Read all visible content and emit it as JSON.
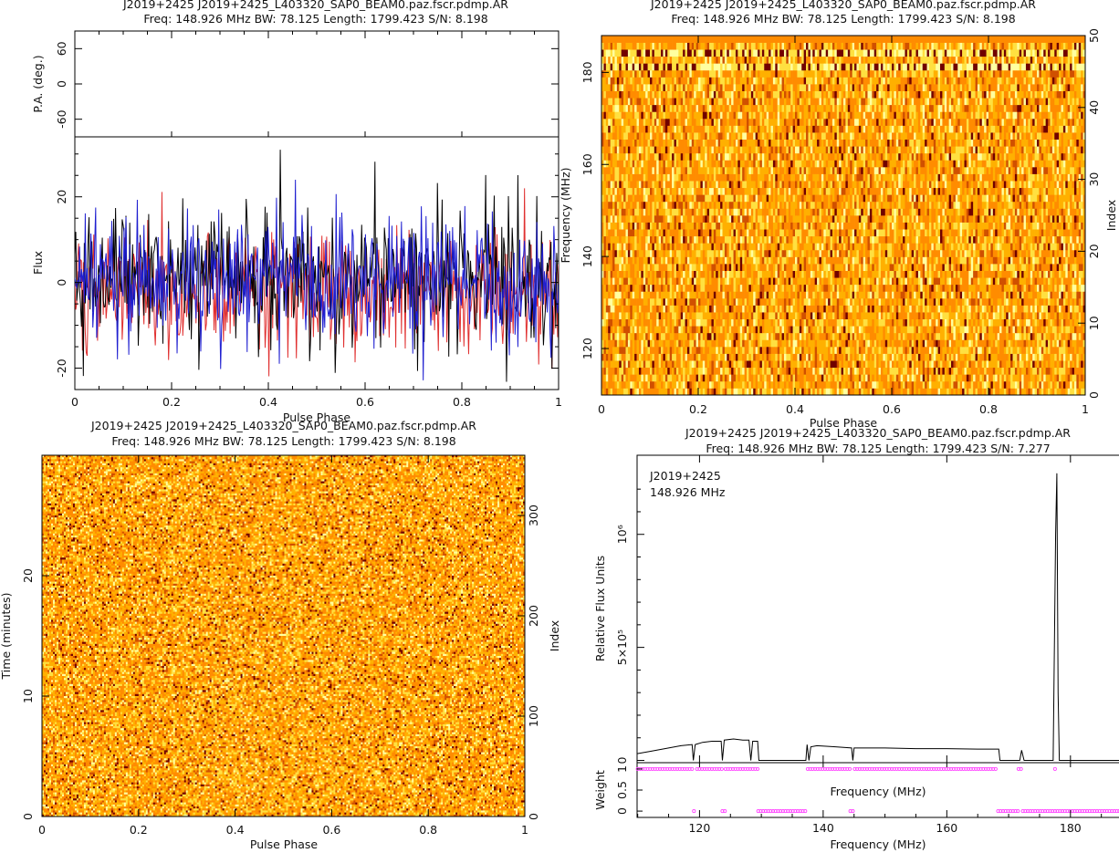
{
  "chart_data": [
    {
      "type": "line",
      "title": "J2019+2425  J2019+2425_L403320_SAP0_BEAM0.paz.fscr.pdmp.AR",
      "subtitle": "Freq: 148.926 MHz BW: 78.125 Length: 1799.423 S/N: 8.198",
      "panels": {
        "pa": {
          "ylabel": "P.A. (deg.)",
          "ylim": [
            -90,
            90
          ],
          "yticks": [
            -60,
            0,
            60
          ]
        },
        "flux": {
          "ylabel": "Flux",
          "ylim": [
            -25,
            34
          ],
          "yticks": [
            -20,
            0,
            20
          ],
          "series": [
            {
              "color": "#e03030",
              "offset": -1.5,
              "amplitude": 7.0,
              "peak_x": 0.93,
              "peak_value": 22
            },
            {
              "color": "#000000",
              "offset": 1.0,
              "amplitude": 8.0,
              "peak_x": 0.425,
              "peak_value": 31
            },
            {
              "color": "#1f1fd0",
              "offset": 0.0,
              "amplitude": 7.5,
              "peak_x": 0.455,
              "peak_value": 24
            }
          ]
        }
      },
      "xlabel": "Pulse Phase",
      "xlim": [
        0,
        1
      ],
      "xticks": [
        "0",
        "0.2",
        "0.4",
        "0.6",
        "0.8",
        "1"
      ]
    },
    {
      "type": "heatmap",
      "title": "J2019+2425  J2019+2425_L403320_SAP0_BEAM0.paz.fscr.pdmp.AR",
      "subtitle": "Freq: 148.926 MHz BW: 78.125 Length: 1799.423 S/N: 8.198",
      "xlabel": "Pulse Phase",
      "ylabel": "Frequency (MHz)",
      "y2label": "Index",
      "xlim": [
        0,
        1
      ],
      "ylim": [
        109.9,
        188.0
      ],
      "y2lim": [
        0,
        50
      ],
      "xticks": [
        "0",
        "0.2",
        "0.4",
        "0.6",
        "0.8",
        "1"
      ],
      "yticks": [
        "120",
        "140",
        "160",
        "180"
      ],
      "y2ticks": [
        "0",
        "10",
        "20",
        "30",
        "40",
        "50"
      ],
      "rows": 52,
      "cols": 220,
      "bright_rows": [
        47,
        49
      ],
      "masked_rows": [
        51
      ],
      "colormap": [
        "#ff8c00",
        "#ffb000",
        "#ffe040",
        "#ffffa0",
        "#d05000",
        "#700000"
      ]
    },
    {
      "type": "heatmap",
      "title": "J2019+2425  J2019+2425_L403320_SAP0_BEAM0.paz.fscr.pdmp.AR",
      "subtitle": "Freq: 148.926 MHz BW: 78.125 Length: 1799.423 S/N: 8.198",
      "xlabel": "Pulse Phase",
      "ylabel": "Time (minutes)",
      "y2label": "Index",
      "xlim": [
        0,
        1
      ],
      "ylim": [
        0,
        30
      ],
      "y2lim": [
        0,
        360
      ],
      "xticks": [
        "0",
        "0.2",
        "0.4",
        "0.6",
        "0.8",
        "1"
      ],
      "yticks": [
        "0",
        "10",
        "20"
      ],
      "y2ticks": [
        "0",
        "100",
        "200",
        "300"
      ],
      "rows": 180,
      "cols": 265,
      "colormap": [
        "#ff8c00",
        "#ffb000",
        "#ffe040",
        "#ffffa0",
        "#d05000",
        "#700000"
      ]
    },
    {
      "type": "line",
      "title": "J2019+2425  J2019+2425_L403320_SAP0_BEAM0.paz.fscr.pdmp.AR",
      "subtitle": "Freq: 148.926 MHz BW: 78.125 Length: 1799.423 S/N: 7.277",
      "annotation": [
        "J2019+2425",
        "148.926 MHz"
      ],
      "xlabel": "Frequency (MHz)",
      "xlim": [
        109.9,
        188.0
      ],
      "xticks": [
        "120",
        "140",
        "160",
        "180"
      ],
      "spectrum": {
        "ylabel": "Relative Flux Units",
        "ylim": [
          -10000,
          1350000
        ],
        "yticks": [
          {
            "value": 0,
            "label": "0"
          },
          {
            "value": 500000,
            "label": "5×10⁵"
          },
          {
            "value": 1000000,
            "label": "10⁶"
          }
        ],
        "points": [
          [
            109.9,
            30000
          ],
          [
            112,
            40000
          ],
          [
            115,
            55000
          ],
          [
            117,
            65000
          ],
          [
            118.8,
            70000
          ],
          [
            119.0,
            0
          ],
          [
            119.3,
            70000
          ],
          [
            120.5,
            80000
          ],
          [
            122,
            85000
          ],
          [
            123.5,
            85000
          ],
          [
            123.7,
            0
          ],
          [
            124.0,
            90000
          ],
          [
            125.5,
            95000
          ],
          [
            127,
            90000
          ],
          [
            128,
            90000
          ],
          [
            128.3,
            0
          ],
          [
            128.6,
            85000
          ],
          [
            129.4,
            85000
          ],
          [
            129.6,
            0
          ],
          [
            137.2,
            0
          ],
          [
            137.4,
            70000
          ],
          [
            137.7,
            0
          ],
          [
            138.0,
            60000
          ],
          [
            139,
            65000
          ],
          [
            142,
            60000
          ],
          [
            144.6,
            55000
          ],
          [
            144.8,
            0
          ],
          [
            145.0,
            55000
          ],
          [
            150,
            55000
          ],
          [
            155,
            52000
          ],
          [
            160,
            52000
          ],
          [
            165,
            50000
          ],
          [
            168.4,
            50000
          ],
          [
            168.6,
            0
          ],
          [
            171.8,
            0
          ],
          [
            172.1,
            45000
          ],
          [
            172.5,
            0
          ],
          [
            177.2,
            0
          ],
          [
            177.6,
            1000000
          ],
          [
            177.8,
            1270000
          ],
          [
            178.0,
            300000
          ],
          [
            178.2,
            0
          ],
          [
            188.0,
            0
          ]
        ]
      },
      "weights": {
        "ylabel": "Weight",
        "ylim": [
          -0.15,
          1.15
        ],
        "yticks": [
          {
            "value": 0,
            "label": "0"
          },
          {
            "value": 0.5,
            "label": "0.5"
          },
          {
            "value": 1,
            "label": "1"
          }
        ],
        "inner_label": "Frequency (MHz)",
        "marker_color": "#ff44ff",
        "one_ranges": [
          [
            110,
            119
          ],
          [
            119.6,
            123.6
          ],
          [
            124.2,
            129.4
          ],
          [
            137.5,
            144.3
          ],
          [
            145.1,
            168.2
          ],
          [
            171.6,
            172.2
          ],
          [
            177.5,
            177.7
          ]
        ],
        "zero_ranges": [
          [
            119.1,
            119.4
          ],
          [
            123.7,
            124.1
          ],
          [
            129.5,
            137.4
          ],
          [
            144.4,
            145.0
          ],
          [
            168.3,
            171.5
          ],
          [
            172.3,
            188
          ]
        ]
      }
    }
  ]
}
